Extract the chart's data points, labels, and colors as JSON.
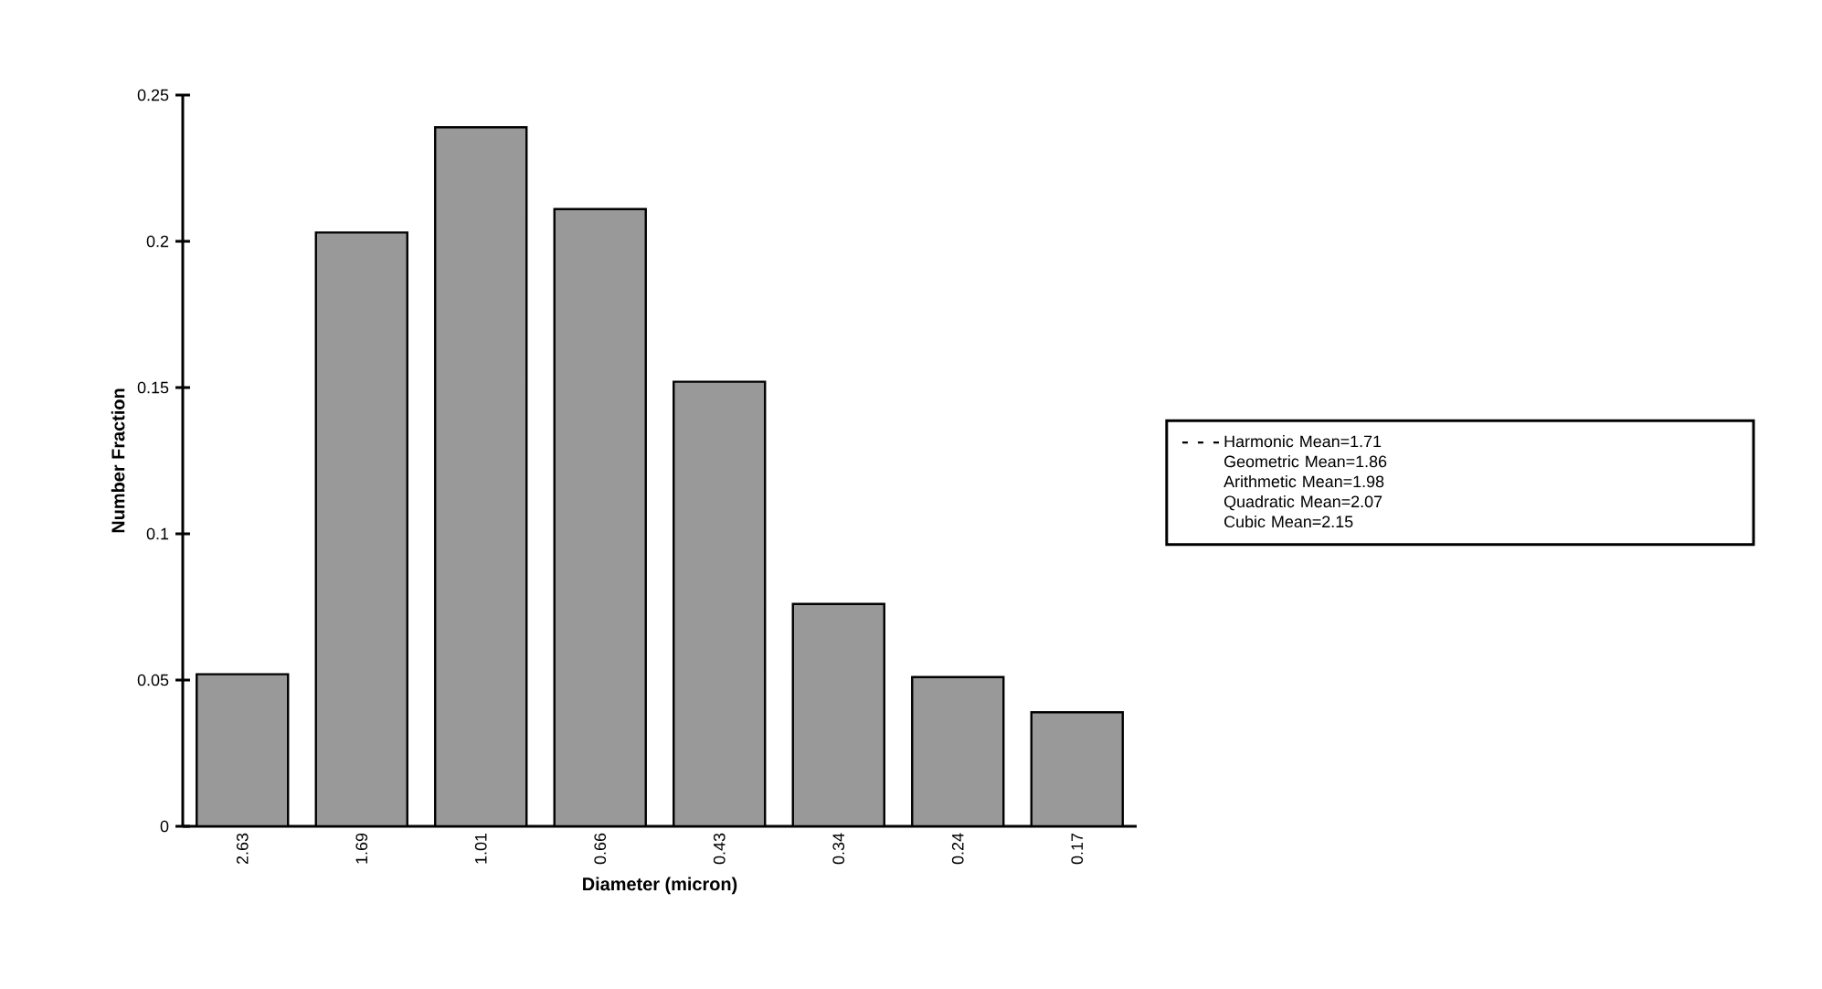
{
  "chart_data": {
    "type": "bar",
    "xlabel": "Diameter (micron)",
    "ylabel": "Number Fraction",
    "categories": [
      "2.63",
      "1.69",
      "1.01",
      "0.66",
      "0.43",
      "0.34",
      "0.24",
      "0.17"
    ],
    "series": [
      {
        "name": "Harmonic Mean=1.71",
        "color": "#999999",
        "values": [
          0.052,
          0.203,
          0.239,
          0.211,
          0.152,
          0.076,
          0.051,
          0.039
        ]
      }
    ],
    "ylim": [
      0,
      0.25
    ],
    "yticks": [
      0,
      0.05,
      0.1,
      0.15,
      0.2,
      0.25
    ],
    "legend": "right",
    "annotations": [
      "Geometric Mean=1.86",
      "Arithmetic Mean=1.98",
      "Quadratic Mean=2.07",
      "Cubic Mean=2.15"
    ]
  }
}
